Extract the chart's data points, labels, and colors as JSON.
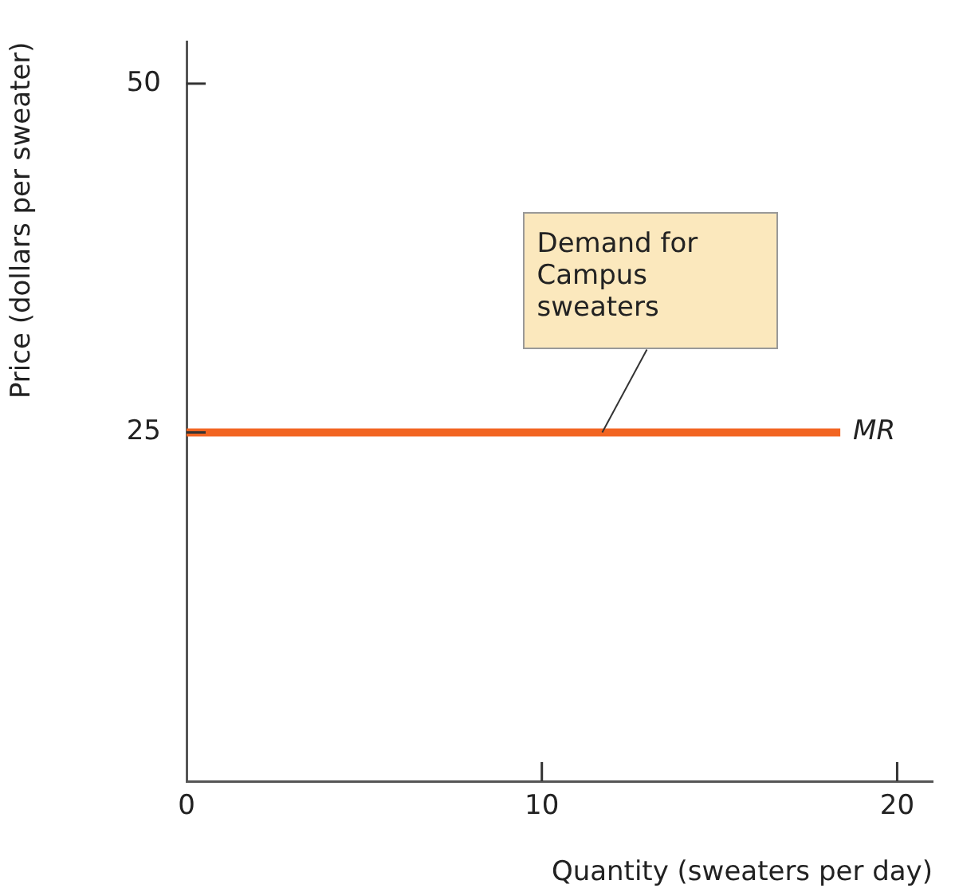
{
  "chart_data": {
    "type": "line",
    "xlabel": "Quantity (sweaters per day)",
    "ylabel": "Price (dollars per sweater)",
    "xlim": [
      0,
      21
    ],
    "ylim": [
      0,
      53
    ],
    "xticks": [
      0,
      10,
      20
    ],
    "yticks": [
      25,
      50
    ],
    "grid": false,
    "legend": false,
    "marker": "none",
    "line_style": "solid",
    "series": [
      {
        "name": "MR",
        "color": "#f26522",
        "x": [
          0,
          18.4
        ],
        "values": [
          25,
          25
        ]
      }
    ],
    "annotations": [
      {
        "text": "Demand for Campus sweaters",
        "x": 11.7,
        "y": 25
      }
    ]
  }
}
